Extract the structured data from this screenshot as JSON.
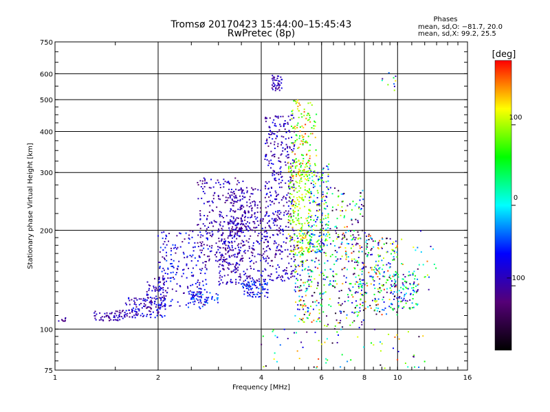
{
  "chart_data": {
    "type": "scatter",
    "title": "Tromsø 20170423 15:44:00–15:45:43",
    "subtitle": "RwPretec (8p)",
    "xlabel": "Frequency [MHz]",
    "ylabel": "Stationary phase Virtual Height [km]",
    "x_scale": "log",
    "y_scale": "log",
    "xlim": [
      1,
      16
    ],
    "ylim": [
      75,
      750
    ],
    "x_ticks": [
      "1",
      "2",
      "4",
      "6",
      "8",
      "10",
      "16"
    ],
    "x_tick_values": [
      1,
      2,
      4,
      6,
      8,
      10,
      16
    ],
    "y_ticks": [
      "750",
      "600",
      "500",
      "400",
      "300",
      "200",
      "100",
      "75"
    ],
    "y_tick_values": [
      750,
      600,
      500,
      400,
      300,
      200,
      100,
      75
    ],
    "grid": true,
    "stats": {
      "title": "Phases",
      "line_o": "mean, sd,O: −81.7, 20.0",
      "line_x": "mean, sd,X:  99.2, 25.5"
    },
    "colorbar": {
      "label": "[deg]",
      "ticks": [
        "100",
        "0",
        "−100"
      ],
      "tick_values": [
        100,
        0,
        -100
      ],
      "range": [
        -180,
        180
      ],
      "colors": [
        "#000000",
        "#550077",
        "#0000ff",
        "#00ffff",
        "#00ff00",
        "#ffff00",
        "#ff0000"
      ]
    },
    "clusters": [
      {
        "x": [
          1.02,
          1.08
        ],
        "y": [
          105,
          109
        ],
        "n": 8,
        "phase": [
          -120,
          -80
        ]
      },
      {
        "x": [
          1.3,
          1.6
        ],
        "y": [
          106,
          114
        ],
        "n": 60,
        "phase": [
          -120,
          -70
        ]
      },
      {
        "x": [
          1.6,
          2.1
        ],
        "y": [
          108,
          125
        ],
        "n": 120,
        "phase": [
          -120,
          -50
        ]
      },
      {
        "x": [
          1.85,
          2.1
        ],
        "y": [
          115,
          145
        ],
        "n": 50,
        "phase": [
          -120,
          -60
        ]
      },
      {
        "x": [
          2.0,
          2.8
        ],
        "y": [
          115,
          200
        ],
        "n": 220,
        "phase": [
          -120,
          -40
        ]
      },
      {
        "x": [
          2.5,
          3.0
        ],
        "y": [
          120,
          130
        ],
        "n": 60,
        "phase": [
          -90,
          -20
        ]
      },
      {
        "x": [
          2.6,
          3.6
        ],
        "y": [
          160,
          290
        ],
        "n": 240,
        "phase": [
          -125,
          -70
        ]
      },
      {
        "x": [
          3.0,
          4.1
        ],
        "y": [
          135,
          220
        ],
        "n": 280,
        "phase": [
          -125,
          -60
        ]
      },
      {
        "x": [
          3.2,
          4.0
        ],
        "y": [
          200,
          270
        ],
        "n": 120,
        "phase": [
          -120,
          -80
        ]
      },
      {
        "x": [
          3.5,
          4.2
        ],
        "y": [
          125,
          140
        ],
        "n": 80,
        "phase": [
          -100,
          -30
        ]
      },
      {
        "x": [
          4.1,
          5.0
        ],
        "y": [
          140,
          450
        ],
        "n": 420,
        "phase": [
          -125,
          -60
        ]
      },
      {
        "x": [
          4.3,
          4.6
        ],
        "y": [
          530,
          600
        ],
        "n": 40,
        "phase": [
          -120,
          -70
        ]
      },
      {
        "x": [
          4.8,
          5.6
        ],
        "y": [
          170,
          330
        ],
        "n": 200,
        "phase": [
          60,
          140
        ]
      },
      {
        "x": [
          4.9,
          5.8
        ],
        "y": [
          280,
          500
        ],
        "n": 140,
        "phase": [
          40,
          170
        ]
      },
      {
        "x": [
          5.0,
          6.0
        ],
        "y": [
          105,
          200
        ],
        "n": 200,
        "phase": [
          -170,
          170
        ]
      },
      {
        "x": [
          5.5,
          6.3
        ],
        "y": [
          170,
          320
        ],
        "n": 140,
        "phase": [
          -120,
          120
        ]
      },
      {
        "x": [
          6.0,
          8.0
        ],
        "y": [
          100,
          270
        ],
        "n": 260,
        "phase": [
          -170,
          170
        ]
      },
      {
        "x": [
          7.5,
          10.0
        ],
        "y": [
          110,
          190
        ],
        "n": 200,
        "phase": [
          -170,
          170
        ]
      },
      {
        "x": [
          9.5,
          11.5
        ],
        "y": [
          115,
          150
        ],
        "n": 100,
        "phase": [
          -120,
          80
        ]
      },
      {
        "x": [
          9.0,
          10.0
        ],
        "y": [
          520,
          610
        ],
        "n": 10,
        "phase": [
          -120,
          170
        ]
      },
      {
        "x": [
          4.0,
          12.0
        ],
        "y": [
          76,
          100
        ],
        "n": 70,
        "phase": [
          -170,
          170
        ]
      },
      {
        "x": [
          6.5,
          13.0
        ],
        "y": [
          130,
          200
        ],
        "n": 80,
        "phase": [
          -170,
          170
        ]
      }
    ]
  }
}
